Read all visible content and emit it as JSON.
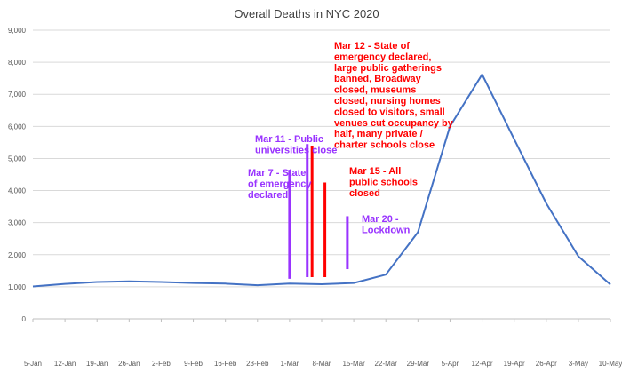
{
  "chart_data": {
    "type": "line",
    "title": "Overall Deaths in NYC 2020",
    "xlabel": "",
    "ylabel": "",
    "ylim": [
      0,
      9000
    ],
    "yticks": [
      "0",
      "1,000",
      "2,000",
      "3,000",
      "4,000",
      "5,000",
      "6,000",
      "7,000",
      "8,000",
      "9,000"
    ],
    "ytick_values": [
      0,
      1000,
      2000,
      3000,
      4000,
      5000,
      6000,
      7000,
      8000,
      9000
    ],
    "categories": [
      "5-Jan",
      "12-Jan",
      "19-Jan",
      "26-Jan",
      "2-Feb",
      "9-Feb",
      "16-Feb",
      "23-Feb",
      "1-Mar",
      "8-Mar",
      "15-Mar",
      "22-Mar",
      "29-Mar",
      "5-Apr",
      "12-Apr",
      "19-Apr",
      "26-Apr",
      "3-May",
      "10-May"
    ],
    "grid": true,
    "series": [
      {
        "color": "#4472c4",
        "values": [
          1010,
          1090,
          1150,
          1170,
          1150,
          1120,
          1100,
          1050,
          1100,
          1080,
          1120,
          1380,
          2700,
          6000,
          7620,
          5600,
          3600,
          1950,
          1070
        ]
      }
    ],
    "annotations": [
      {
        "id": "mar7",
        "text": [
          "Mar 7 - State",
          "of emergency",
          "declared"
        ],
        "color": "#9933ff",
        "bars": [
          {
            "x": 8.0,
            "y0": 1250,
            "y1": 4650
          }
        ]
      },
      {
        "id": "mar11",
        "text": [
          "Mar 11 - Public",
          "universities close"
        ],
        "color": "#9933ff",
        "bars": [
          {
            "x": 8.55,
            "y0": 1300,
            "y1": 5450
          }
        ]
      },
      {
        "id": "mar12",
        "text": [
          "Mar 12 - State of",
          "emergency declared,",
          "large public gatherings",
          "banned, Broadway",
          "closed, museums",
          "closed, nursing homes",
          "closed to visitors, small",
          "venues cut occupancy by",
          "half, many private /",
          "charter schools close"
        ],
        "color": "#ff0000",
        "bars": [
          {
            "x": 8.7,
            "y0": 1300,
            "y1": 5400
          }
        ]
      },
      {
        "id": "mar15",
        "text": [
          "Mar 15 - All",
          "public schools",
          "closed"
        ],
        "color": "#ff0000",
        "bars": [
          {
            "x": 9.1,
            "y0": 1300,
            "y1": 4250
          }
        ]
      },
      {
        "id": "mar20",
        "text": [
          "Mar 20 -",
          "Lockdown"
        ],
        "color": "#9933ff",
        "bars": [
          {
            "x": 9.8,
            "y0": 1550,
            "y1": 3200
          }
        ]
      }
    ]
  }
}
